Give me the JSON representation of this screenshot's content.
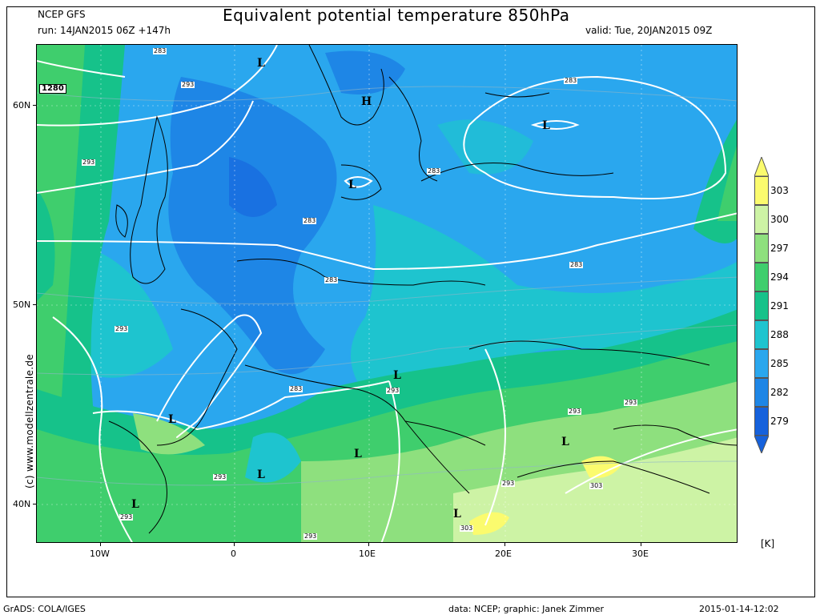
{
  "header": {
    "model": "NCEP GFS",
    "run": "run: 14JAN2015 06Z +147h",
    "title": "Equivalent potential temperature 850hPa",
    "valid": "valid: Tue, 20JAN2015 09Z"
  },
  "map": {
    "lat_labels": [
      "60N",
      "50N",
      "40N"
    ],
    "lon_labels": [
      "10W",
      "0",
      "10E",
      "20E",
      "30E"
    ],
    "contour_value_labels": [
      "283",
      "293",
      "303",
      "1280"
    ],
    "pressure_centers": [
      "L",
      "H"
    ]
  },
  "colorbar": {
    "labels": [
      "303",
      "300",
      "297",
      "294",
      "291",
      "288",
      "285",
      "282",
      "279"
    ],
    "unit": "[K]",
    "colors": {
      "c303": "#fbfb6e",
      "c300": "#cdf3a5",
      "c297": "#8ee07e",
      "c294": "#3fce6d",
      "c291": "#16c28a",
      "c288": "#1ec4cf",
      "c285": "#2aa7ee",
      "c282": "#1e86e6",
      "c279": "#1561dc"
    }
  },
  "watermark": "(c) www.modellzentrale.de",
  "footer": {
    "left": "GrADS: COLA/IGES",
    "center": "data: NCEP; graphic: Janek Zimmer",
    "right": "2015-01-14-12:02"
  }
}
